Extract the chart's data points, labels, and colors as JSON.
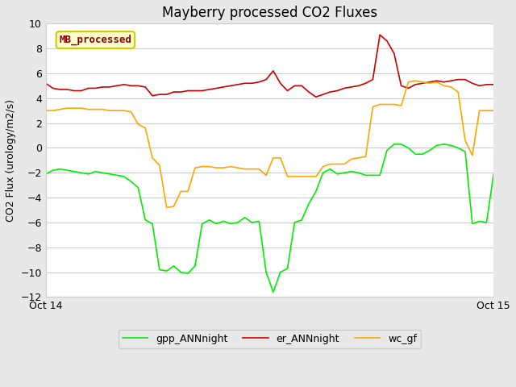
{
  "title": "Mayberry processed CO2 Fluxes",
  "ylabel": "CO2 Flux (urology/m2/s)",
  "ylim": [
    -12,
    10
  ],
  "yticks": [
    -12,
    -10,
    -8,
    -6,
    -4,
    -2,
    0,
    2,
    4,
    6,
    8,
    10
  ],
  "fig_bg_color": "#e8e8e8",
  "plot_bg_color": "#ffffff",
  "legend_label": "MB_processed",
  "legend_text_color": "#8b0000",
  "legend_box_facecolor": "#ffffcc",
  "legend_box_edgecolor": "#cccc00",
  "x_start_label": "Oct 14",
  "x_end_label": "Oct 15",
  "gpp_color": "#00ee00",
  "er_color": "#cc0000",
  "wc_color": "#ffa500",
  "title_fontsize": 12,
  "label_fontsize": 9,
  "tick_fontsize": 9,
  "gpp_ANNnight": [
    -2.1,
    -1.8,
    -1.7,
    -1.8,
    -1.9,
    -2.0,
    -2.1,
    -1.9,
    -2.0,
    -2.1,
    -2.2,
    -2.3,
    -2.7,
    -3.2,
    -5.8,
    -6.1,
    -9.8,
    -9.9,
    -9.5,
    -10.0,
    -10.1,
    -9.5,
    -6.1,
    -5.8,
    -6.1,
    -5.9,
    -6.1,
    -6.0,
    -5.6,
    -6.0,
    -5.9,
    -10.0,
    -11.6,
    -10.0,
    -9.7,
    -6.0,
    -5.8,
    -4.5,
    -3.5,
    -2.0,
    -1.7,
    -2.1,
    -2.0,
    -1.9,
    -2.0,
    -2.2,
    -2.2,
    -2.2,
    -0.2,
    0.3,
    0.3,
    0.0,
    -0.5,
    -0.5,
    -0.2,
    0.2,
    0.3,
    0.2,
    0.0,
    -0.3,
    -6.1,
    -5.9,
    -6.0,
    -2.1
  ],
  "er_ANNnight": [
    5.2,
    4.8,
    4.7,
    4.7,
    4.6,
    4.6,
    4.8,
    4.8,
    4.9,
    4.9,
    5.0,
    5.1,
    5.0,
    5.0,
    4.9,
    4.2,
    4.3,
    4.3,
    4.5,
    4.5,
    4.6,
    4.6,
    4.6,
    4.7,
    4.8,
    4.9,
    5.0,
    5.1,
    5.2,
    5.2,
    5.3,
    5.5,
    6.2,
    5.2,
    4.6,
    5.0,
    5.0,
    4.5,
    4.1,
    4.3,
    4.5,
    4.6,
    4.8,
    4.9,
    5.0,
    5.2,
    5.5,
    9.1,
    8.6,
    7.6,
    5.0,
    4.8,
    5.1,
    5.2,
    5.3,
    5.4,
    5.3,
    5.4,
    5.5,
    5.5,
    5.2,
    5.0,
    5.1,
    5.1
  ],
  "wc_gf": [
    3.0,
    3.0,
    3.1,
    3.2,
    3.2,
    3.2,
    3.1,
    3.1,
    3.1,
    3.0,
    3.0,
    3.0,
    2.9,
    1.9,
    1.6,
    -0.8,
    -1.4,
    -4.8,
    -4.7,
    -3.5,
    -3.5,
    -1.6,
    -1.5,
    -1.5,
    -1.6,
    -1.6,
    -1.5,
    -1.6,
    -1.7,
    -1.7,
    -1.7,
    -2.2,
    -0.8,
    -0.8,
    -2.3,
    -2.3,
    -2.3,
    -2.3,
    -2.3,
    -1.5,
    -1.3,
    -1.3,
    -1.3,
    -0.9,
    -0.8,
    -0.7,
    3.3,
    3.5,
    3.5,
    3.5,
    3.4,
    5.3,
    5.4,
    5.3,
    5.2,
    5.3,
    5.0,
    4.9,
    4.5,
    0.6,
    -0.6,
    3.0,
    3.0,
    3.0
  ]
}
